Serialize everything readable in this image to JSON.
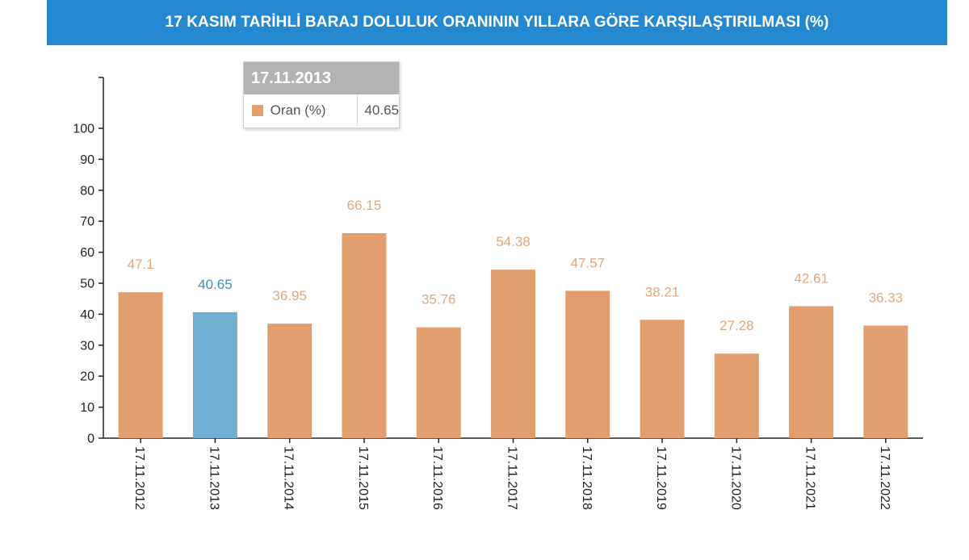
{
  "title": "17 KASIM TARİHLİ BARAJ DOLULUK ORANININ YILLARA GÖRE KARŞILAŞTIRILMASI (%)",
  "tooltip": {
    "header": "17.11.2013",
    "series_name": "Oran (%)",
    "value": "40.65"
  },
  "colors": {
    "header_bg": "#2589d2",
    "bar": "#e39e6f",
    "bar_highlight": "#6fb0d2",
    "label": "#e0a87e",
    "label_highlight": "#3f8fc0"
  },
  "chart_data": {
    "type": "bar",
    "title": "17 KASIM TARİHLİ BARAJ DOLULUK ORANININ YILLARA GÖRE KARŞILAŞTIRILMASI (%)",
    "xlabel": "",
    "ylabel": "",
    "ylim": [
      0,
      115
    ],
    "yticks": [
      0,
      10,
      20,
      30,
      40,
      50,
      60,
      70,
      80,
      90,
      100
    ],
    "categories": [
      "17.11.2012",
      "17.11.2013",
      "17.11.2014",
      "17.11.2015",
      "17.11.2016",
      "17.11.2017",
      "17.11.2018",
      "17.11.2019",
      "17.11.2020",
      "17.11.2021",
      "17.11.2022"
    ],
    "series": [
      {
        "name": "Oran (%)",
        "values": [
          47.1,
          40.65,
          36.95,
          66.15,
          35.76,
          54.38,
          47.57,
          38.21,
          27.28,
          42.61,
          36.33
        ],
        "labels": [
          "47.1",
          "40.65",
          "36.95",
          "66.15",
          "35.76",
          "54.38",
          "47.57",
          "38.21",
          "27.28",
          "42.61",
          "36.33"
        ]
      }
    ],
    "highlighted_index": 1,
    "grid": false,
    "legend": "none"
  }
}
